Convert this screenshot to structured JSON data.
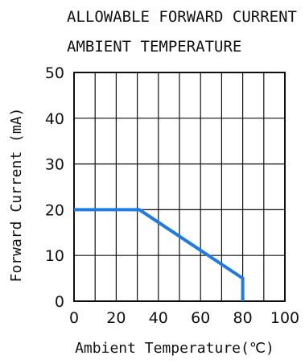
{
  "chart_data": {
    "type": "line",
    "title_lines": [
      "ALLOWABLE FORWARD CURRENT",
      "AMBIENT TEMPERATURE"
    ],
    "xlabel": "Ambient Temperature(℃)",
    "ylabel": "Forward Current (mA)",
    "xlim": [
      0,
      100
    ],
    "ylim": [
      0,
      50
    ],
    "x_ticks": [
      "0",
      "20",
      "40",
      "60",
      "80",
      "100"
    ],
    "y_ticks": [
      "0",
      "10",
      "20",
      "30",
      "40",
      "50"
    ],
    "grid": true,
    "series": [
      {
        "x": [
          0,
          31,
          80,
          80
        ],
        "y": [
          20,
          20,
          5,
          0
        ],
        "color": "#1e7be3"
      }
    ]
  }
}
